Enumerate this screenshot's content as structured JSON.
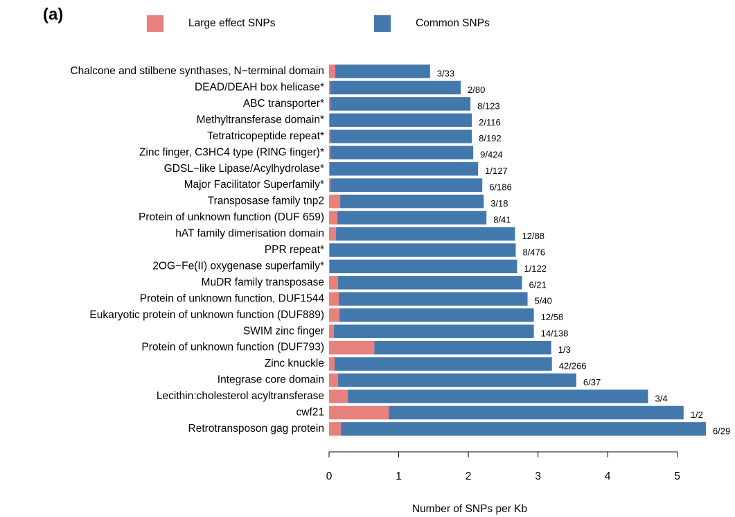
{
  "chart_data": {
    "type": "stacked-barh",
    "panel_label": "(a)",
    "xlabel": "Number of SNPs per Kb",
    "categories": [
      "Chalcone and stilbene synthases, N−terminal domain",
      "DEAD/DEAH box helicase*",
      "ABC transporter*",
      "Methyltransferase domain*",
      "Tetratricopeptide repeat*",
      "Zinc finger, C3HC4 type (RING finger)*",
      "GDSL−like Lipase/Acylhydrolase*",
      "Major Facilitator Superfamily*",
      "Transposase family tnp2",
      "Protein of unknown function (DUF 659)",
      "hAT family dimerisation domain",
      "PPR repeat*",
      "2OG−Fe(II) oxygenase superfamily*",
      "MuDR family transposase",
      "Protein of unknown function, DUF1544",
      "Eukaryotic protein of unknown function (DUF889)",
      "SWIM zinc finger",
      "Protein of unknown function (DUF793)",
      "Zinc knuckle",
      "Integrase core domain",
      "Lecithin:cholesterol acyltransferase",
      "cwf21",
      "Retrotransposon gag protein"
    ],
    "series": [
      {
        "name": "Large effect SNPs",
        "color": "#e8807d",
        "values": [
          0.09,
          0.02,
          0.02,
          0.01,
          0.02,
          0.02,
          0.01,
          0.02,
          0.16,
          0.12,
          0.1,
          0.01,
          0.01,
          0.13,
          0.14,
          0.15,
          0.07,
          0.65,
          0.08,
          0.13,
          0.27,
          0.86,
          0.17
        ]
      },
      {
        "name": "Common SNPs",
        "color": "#4278ac",
        "values": [
          1.36,
          1.87,
          2.01,
          2.04,
          2.03,
          2.05,
          2.13,
          2.18,
          2.06,
          2.14,
          2.57,
          2.67,
          2.69,
          2.64,
          2.71,
          2.79,
          2.87,
          2.54,
          3.12,
          3.42,
          4.31,
          4.23,
          5.24
        ]
      }
    ],
    "annotations": [
      "3/33",
      "2/80",
      "8/123",
      "2/116",
      "8/192",
      "9/424",
      "1/127",
      "6/186",
      "3/18",
      "8/41",
      "12/88",
      "8/476",
      "1/122",
      "6/21",
      "5/40",
      "12/58",
      "14/138",
      "1/3",
      "42/266",
      "6/37",
      "3/4",
      "1/2",
      "6/29"
    ],
    "xlim": [
      0,
      5.5
    ],
    "xticks": [
      0,
      1,
      2,
      3,
      4,
      5
    ]
  }
}
